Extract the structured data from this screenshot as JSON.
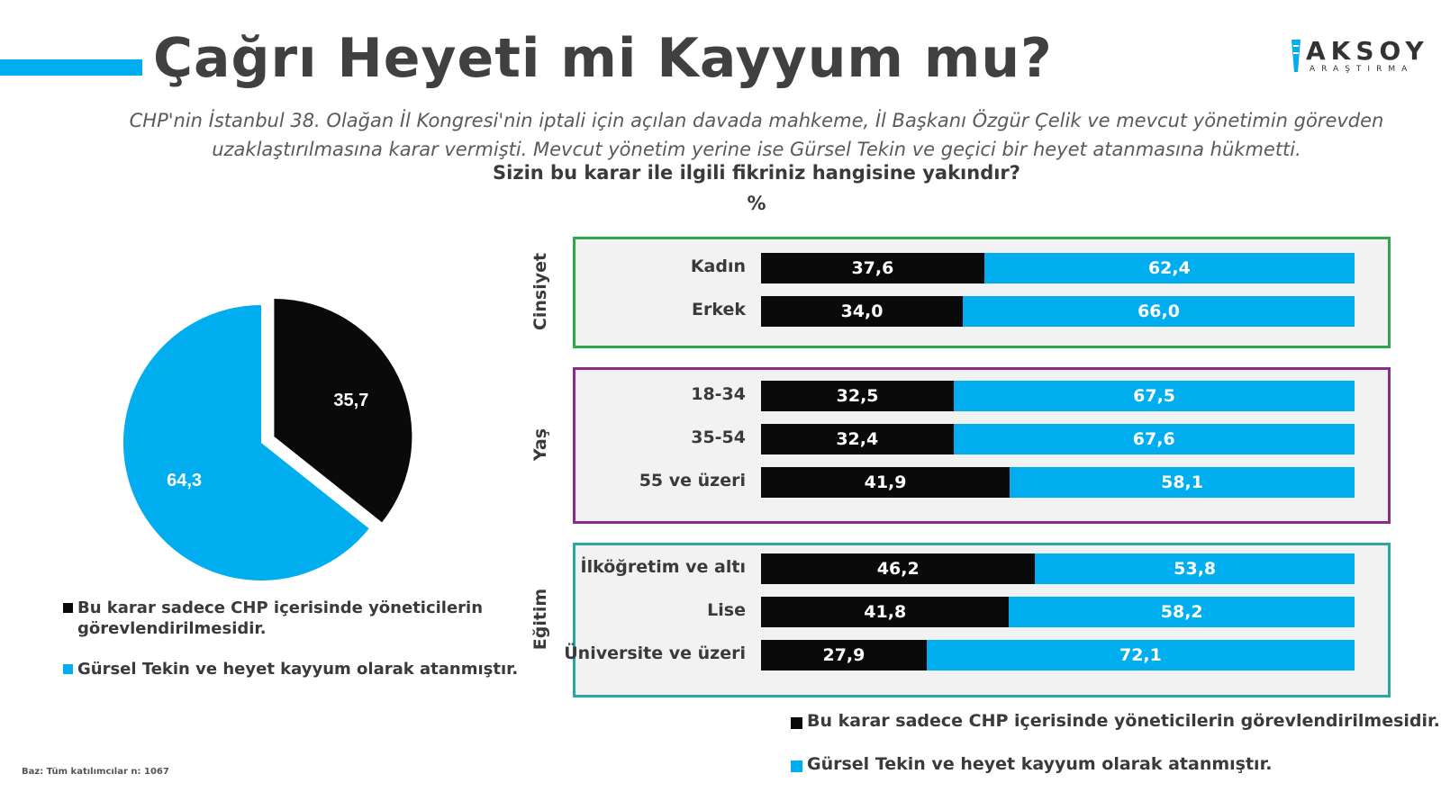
{
  "title": "Çağrı Heyeti mi Kayyum mu?",
  "logo": {
    "main": "AKSOY",
    "sub": "ARAŞTIRMA"
  },
  "subtitle_line1": "CHP'nin İstanbul 38. Olağan İl Kongresi'nin iptali için açılan davada mahkeme, İl Başkanı Özgür Çelik ve mevcut yönetimin görevden",
  "subtitle_line2": "uzaklaştırılmasına karar vermişti. Mevcut yönetim yerine ise Gürsel Tekin ve geçici bir heyet atanmasına hükmetti.",
  "question": "Sizin bu karar ile ilgili fikriniz hangisine yakındır?",
  "unit": "%",
  "base_note": "Baz: Tüm katılımcılar n: 1067",
  "colors": {
    "black": "#0a0a0a",
    "blue": "#00adef",
    "cinsiyet": "#2ea84a",
    "yas": "#8b2c8b",
    "egitim": "#2aa7a0"
  },
  "chart_data": [
    {
      "type": "pie",
      "slices": [
        {
          "label": "Bu karar sadece CHP içerisinde yöneticilerin görevlendirilmesidir.",
          "value_text": "35,7",
          "value": 35.7,
          "color": "#0a0a0a"
        },
        {
          "label": "Gürsel Tekin ve heyet kayyum olarak atanmıştır.",
          "value_text": "64,3",
          "value": 64.3,
          "color": "#00adef"
        }
      ],
      "legend": [
        {
          "line1": "Bu karar sadece CHP içerisinde yöneticilerin",
          "line2": "görevlendirilmesidir.",
          "color": "#0a0a0a"
        },
        {
          "line1": "Gürsel Tekin ve heyet kayyum olarak atanmıştır.",
          "line2": "",
          "color": "#00adef"
        }
      ]
    },
    {
      "type": "bar",
      "stacked": true,
      "orientation": "horizontal",
      "series_names": [
        "Bu karar sadece CHP içerisinde yöneticilerin görevlendirilmesidir.",
        "Gürsel Tekin ve heyet kayyum olarak atanmıştır."
      ],
      "groups": [
        {
          "name": "Cinsiyet",
          "rows": [
            {
              "label": "Kadın",
              "a": 37.6,
              "b": 62.4,
              "a_text": "37,6",
              "b_text": "62,4"
            },
            {
              "label": "Erkek",
              "a": 34.0,
              "b": 66.0,
              "a_text": "34,0",
              "b_text": "66,0"
            }
          ]
        },
        {
          "name": "Yaş",
          "rows": [
            {
              "label": "18-34",
              "a": 32.5,
              "b": 67.5,
              "a_text": "32,5",
              "b_text": "67,5"
            },
            {
              "label": "35-54",
              "a": 32.4,
              "b": 67.6,
              "a_text": "32,4",
              "b_text": "67,6"
            },
            {
              "label": "55 ve üzeri",
              "a": 41.9,
              "b": 58.1,
              "a_text": "41,9",
              "b_text": "58,1"
            }
          ]
        },
        {
          "name": "Eğitim",
          "rows": [
            {
              "label": "İlköğretim ve altı",
              "a": 46.2,
              "b": 53.8,
              "a_text": "46,2",
              "b_text": "53,8"
            },
            {
              "label": "Lise",
              "a": 41.8,
              "b": 58.2,
              "a_text": "41,8",
              "b_text": "58,2"
            },
            {
              "label": "Üniversite ve üzeri",
              "a": 27.9,
              "b": 72.1,
              "a_text": "27,9",
              "b_text": "72,1"
            }
          ]
        }
      ]
    }
  ]
}
